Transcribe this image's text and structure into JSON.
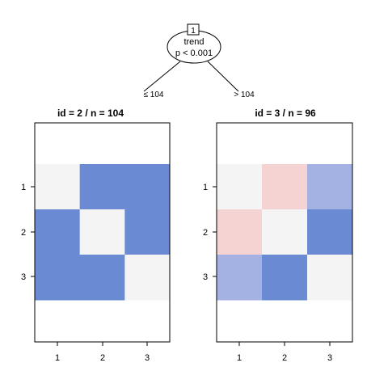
{
  "root": {
    "id_label": "1",
    "variable": "trend",
    "p_value": "p < 0.001"
  },
  "edges": {
    "left_label": "≤ 104",
    "right_label": "> 104"
  },
  "colors": {
    "zero": "#f4f4f4",
    "strong_blue": "#6a8bd4",
    "light_blue": "#a3b2e3",
    "light_red": "#f6d3d3"
  },
  "panels": [
    {
      "title": "id =  2  / n = 104",
      "row_labels": [
        "1",
        "2",
        "3"
      ],
      "col_labels": [
        "1",
        "2",
        "3"
      ],
      "cells": [
        [
          "zero",
          "strong_blue",
          "strong_blue"
        ],
        [
          "strong_blue",
          "zero",
          "strong_blue"
        ],
        [
          "strong_blue",
          "strong_blue",
          "zero"
        ]
      ]
    },
    {
      "title": "id =  3  / n = 96",
      "row_labels": [
        "1",
        "2",
        "3"
      ],
      "col_labels": [
        "1",
        "2",
        "3"
      ],
      "cells": [
        [
          "zero",
          "light_red",
          "light_blue"
        ],
        [
          "light_red",
          "zero",
          "strong_blue"
        ],
        [
          "light_blue",
          "strong_blue",
          "zero"
        ]
      ]
    }
  ]
}
